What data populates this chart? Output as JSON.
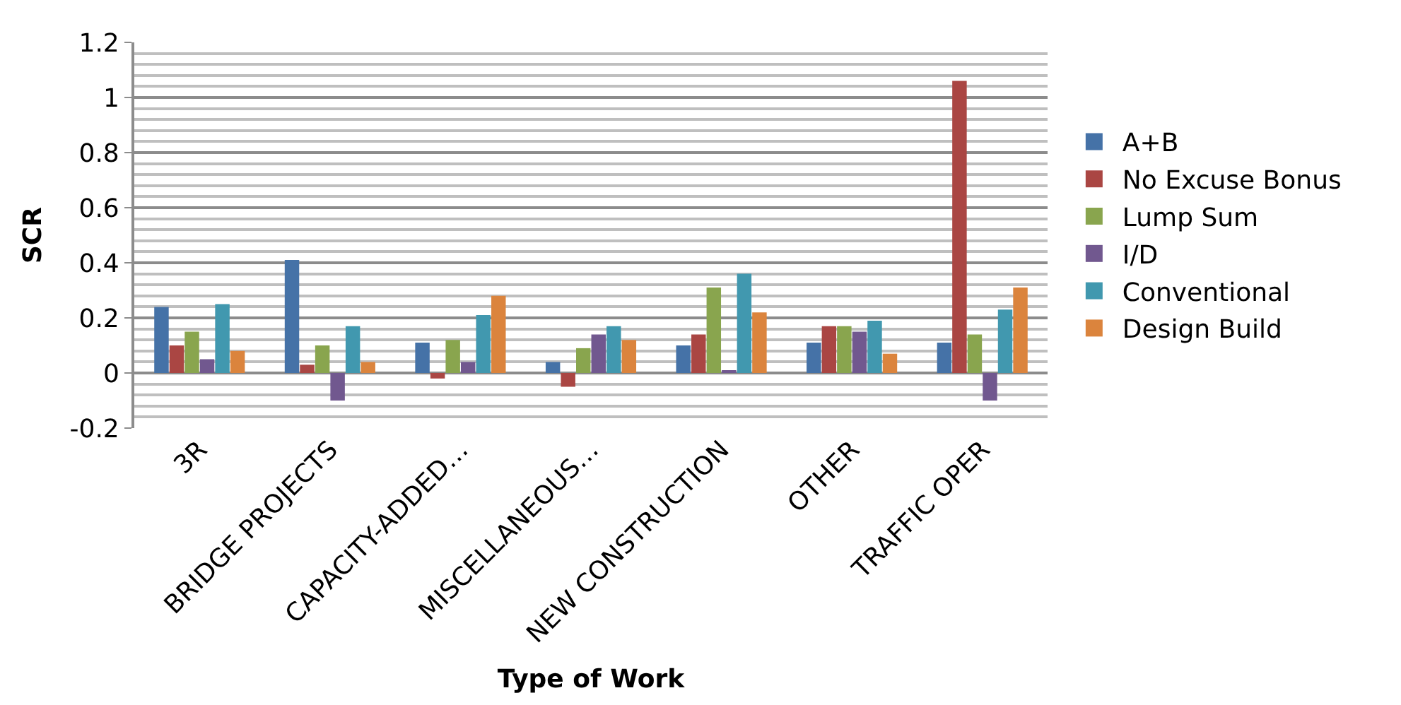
{
  "chart_data": {
    "type": "bar",
    "xlabel": "Type of Work",
    "ylabel": "SCR",
    "categories": [
      "3R",
      "BRIDGE PROJECTS",
      "CAPACITY-ADDED…",
      "MISCELLANEOUS…",
      "NEW CONSTRUCTION",
      "OTHER",
      "TRAFFIC OPER"
    ],
    "series": [
      {
        "name": "A+B",
        "color": "#4572a7",
        "values": [
          0.24,
          0.41,
          0.11,
          0.04,
          0.1,
          0.11,
          0.11
        ]
      },
      {
        "name": "No Excuse Bonus",
        "color": "#aa4643",
        "values": [
          0.1,
          0.03,
          -0.02,
          -0.05,
          0.14,
          0.17,
          1.06
        ]
      },
      {
        "name": "Lump Sum",
        "color": "#89a54e",
        "values": [
          0.15,
          0.1,
          0.12,
          0.09,
          0.31,
          0.17,
          0.14
        ]
      },
      {
        "name": "I/D",
        "color": "#71588f",
        "values": [
          0.05,
          -0.1,
          0.04,
          0.14,
          0.01,
          0.15,
          -0.1
        ]
      },
      {
        "name": "Conventional",
        "color": "#4198af",
        "values": [
          0.25,
          0.17,
          0.21,
          0.17,
          0.36,
          0.19,
          0.23
        ]
      },
      {
        "name": "Design Build",
        "color": "#db843d",
        "values": [
          0.08,
          0.04,
          0.28,
          0.12,
          0.22,
          0.07,
          0.31
        ]
      }
    ],
    "ylim": [
      -0.2,
      1.2
    ],
    "yticks": [
      -0.2,
      0,
      0.2,
      0.4,
      0.6,
      0.8,
      1,
      1.2
    ],
    "grid": "y",
    "legend": "right"
  }
}
